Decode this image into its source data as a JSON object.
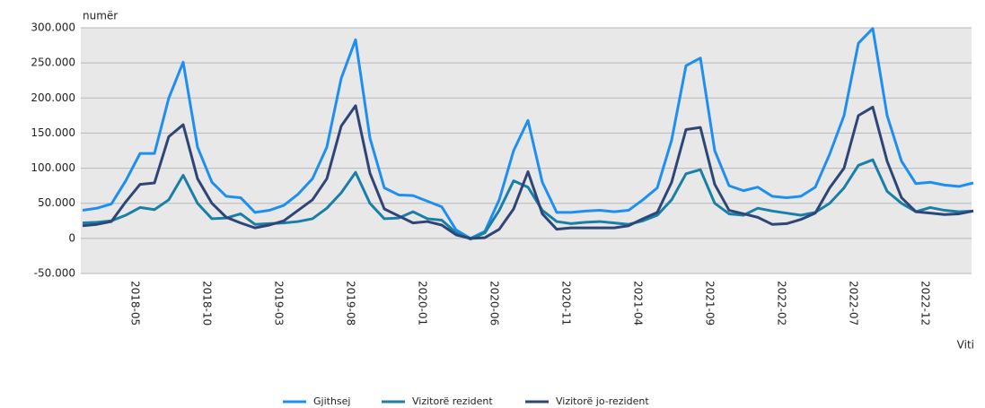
{
  "chart_data": {
    "type": "line",
    "y_label": "numër",
    "x_label": "Viti",
    "categories": [
      null,
      null,
      null,
      null,
      "2018-05",
      null,
      null,
      null,
      null,
      "2018-10",
      null,
      null,
      null,
      null,
      "2019-03",
      null,
      null,
      null,
      null,
      "2019-08",
      null,
      null,
      null,
      null,
      "2020-01",
      null,
      null,
      null,
      null,
      "2020-06",
      null,
      null,
      null,
      null,
      "2020-11",
      null,
      null,
      null,
      null,
      "2021-04",
      null,
      null,
      null,
      null,
      "2021-09",
      null,
      null,
      null,
      null,
      "2022-02",
      null,
      null,
      null,
      null,
      "2022-07",
      null,
      null,
      null,
      null,
      "2022-12",
      null,
      null,
      null
    ],
    "series": [
      {
        "name": "Gjithsej",
        "color": "#1e8ff0",
        "values": [
          40000,
          43000,
          49000,
          82000,
          121000,
          121000,
          200000,
          251000,
          130000,
          80000,
          60000,
          58000,
          37000,
          40000,
          47000,
          63000,
          85000,
          130000,
          228000,
          283000,
          143000,
          72000,
          62000,
          61000,
          53000,
          45000,
          12000,
          0,
          10000,
          55000,
          125000,
          168000,
          80000,
          37000,
          37000,
          39000,
          40000,
          38000,
          40000,
          55000,
          72000,
          140000,
          246000,
          257000,
          125000,
          75000,
          68000,
          73000,
          60000,
          58000,
          60000,
          73000,
          120000,
          175000,
          278000,
          299000,
          175000,
          110000,
          78000,
          80000,
          76000,
          74000,
          79000
        ]
      },
      {
        "name": "Vizitorë rezident",
        "color": "#1a7fa6",
        "values": [
          22000,
          23000,
          25000,
          33000,
          44000,
          41000,
          55000,
          90000,
          50000,
          28000,
          29000,
          35000,
          20000,
          21000,
          22000,
          24000,
          28000,
          43000,
          65000,
          94000,
          50000,
          28000,
          29000,
          38000,
          28000,
          26000,
          8000,
          -1000,
          8000,
          40000,
          82000,
          73000,
          40000,
          24000,
          21000,
          23000,
          24000,
          22000,
          20000,
          25000,
          33000,
          55000,
          92000,
          98000,
          50000,
          35000,
          33000,
          43000,
          39000,
          36000,
          33000,
          37000,
          50000,
          72000,
          104000,
          112000,
          67000,
          50000,
          38000,
          44000,
          40000,
          38000,
          39000
        ]
      },
      {
        "name": "Vizitorë jo-rezident",
        "color": "#2e4677",
        "values": [
          18000,
          20000,
          24000,
          52000,
          77000,
          79000,
          145000,
          162000,
          85000,
          50000,
          30000,
          22000,
          15000,
          19000,
          25000,
          40000,
          55000,
          85000,
          160000,
          189000,
          93000,
          42000,
          32000,
          22000,
          24000,
          19000,
          5000,
          0,
          1000,
          13000,
          42000,
          95000,
          35000,
          13000,
          15000,
          15000,
          15000,
          15000,
          18000,
          28000,
          37000,
          80000,
          155000,
          158000,
          77000,
          40000,
          35000,
          30000,
          20000,
          21000,
          27000,
          36000,
          72000,
          100000,
          175000,
          187000,
          110000,
          58000,
          38000,
          36000,
          34000,
          35000,
          39000
        ]
      }
    ],
    "ylim": [
      -50000,
      300000
    ],
    "yticks": [
      {
        "value": -50000,
        "label": "-50.000"
      },
      0,
      {
        "value": 50000,
        "label": "50.000"
      },
      {
        "value": 100000,
        "label": "100.000"
      },
      {
        "value": 150000,
        "label": "150.000"
      },
      {
        "value": 200000,
        "label": "200.000"
      },
      {
        "value": 250000,
        "label": "250.000"
      },
      {
        "value": 300000,
        "label": "300.000"
      }
    ],
    "grid": true,
    "legend": "bottom"
  }
}
